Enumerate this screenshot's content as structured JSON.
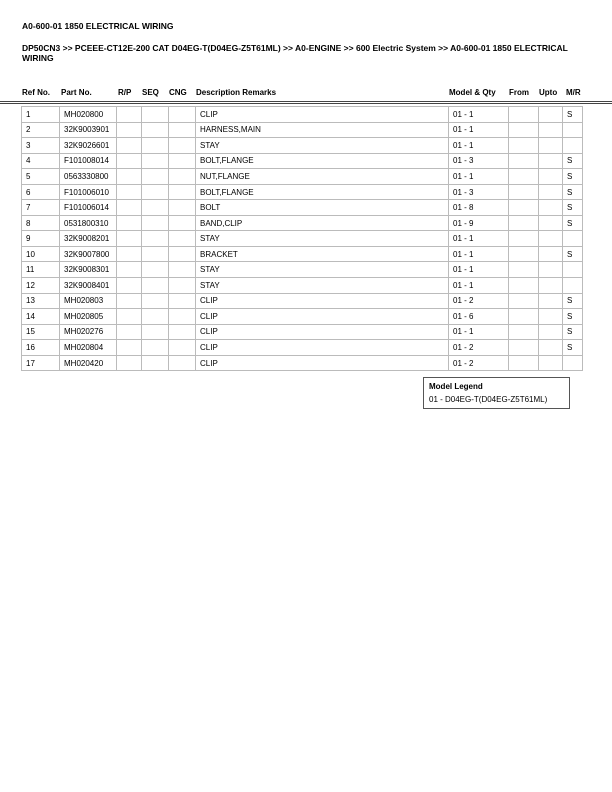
{
  "title": "A0-600-01 1850 ELECTRICAL WIRING",
  "breadcrumb": "DP50CN3 >> PCEEE-CT12E-200 CAT D04EG-T(D04EG-Z5T61ML) >> A0-ENGINE >> 600 Electric System >> A0-600-01 1850 ELECTRICAL WIRING",
  "columns": [
    "Ref No.",
    "Part No.",
    "R/P",
    "SEQ",
    "CNG",
    "Description Remarks",
    "Model & Qty",
    "From",
    "Upto",
    "M/R"
  ],
  "rows": [
    [
      "1",
      "MH020800",
      "",
      "",
      "",
      "CLIP",
      "01 - 1",
      "",
      "",
      "S"
    ],
    [
      "2",
      "32K9003901",
      "",
      "",
      "",
      "HARNESS,MAIN",
      "01 - 1",
      "",
      "",
      ""
    ],
    [
      "3",
      "32K9026601",
      "",
      "",
      "",
      "STAY",
      "01 - 1",
      "",
      "",
      ""
    ],
    [
      "4",
      "F101008014",
      "",
      "",
      "",
      "BOLT,FLANGE",
      "01 - 3",
      "",
      "",
      "S"
    ],
    [
      "5",
      "0563330800",
      "",
      "",
      "",
      "NUT,FLANGE",
      "01 - 1",
      "",
      "",
      "S"
    ],
    [
      "6",
      "F101006010",
      "",
      "",
      "",
      "BOLT,FLANGE",
      "01 - 3",
      "",
      "",
      "S"
    ],
    [
      "7",
      "F101006014",
      "",
      "",
      "",
      "BOLT",
      "01 - 8",
      "",
      "",
      "S"
    ],
    [
      "8",
      "0531800310",
      "",
      "",
      "",
      "BAND,CLIP",
      "01 - 9",
      "",
      "",
      "S"
    ],
    [
      "9",
      "32K9008201",
      "",
      "",
      "",
      "STAY",
      "01 - 1",
      "",
      "",
      ""
    ],
    [
      "10",
      "32K9007800",
      "",
      "",
      "",
      "BRACKET",
      "01 - 1",
      "",
      "",
      "S"
    ],
    [
      "11",
      "32K9008301",
      "",
      "",
      "",
      "STAY",
      "01 - 1",
      "",
      "",
      ""
    ],
    [
      "12",
      "32K9008401",
      "",
      "",
      "",
      "STAY",
      "01 - 1",
      "",
      "",
      ""
    ],
    [
      "13",
      "MH020803",
      "",
      "",
      "",
      "CLIP",
      "01 - 2",
      "",
      "",
      "S"
    ],
    [
      "14",
      "MH020805",
      "",
      "",
      "",
      "CLIP",
      "01 - 6",
      "",
      "",
      "S"
    ],
    [
      "15",
      "MH020276",
      "",
      "",
      "",
      "CLIP",
      "01 - 1",
      "",
      "",
      "S"
    ],
    [
      "16",
      "MH020804",
      "",
      "",
      "",
      "CLIP",
      "01 - 2",
      "",
      "",
      "S"
    ],
    [
      "17",
      "MH020420",
      "",
      "",
      "",
      "CLIP",
      "01 - 2",
      "",
      "",
      ""
    ]
  ],
  "legend": {
    "title": "Model Legend",
    "entries": [
      "01 - D04EG-T(D04EG-Z5T61ML)"
    ]
  }
}
